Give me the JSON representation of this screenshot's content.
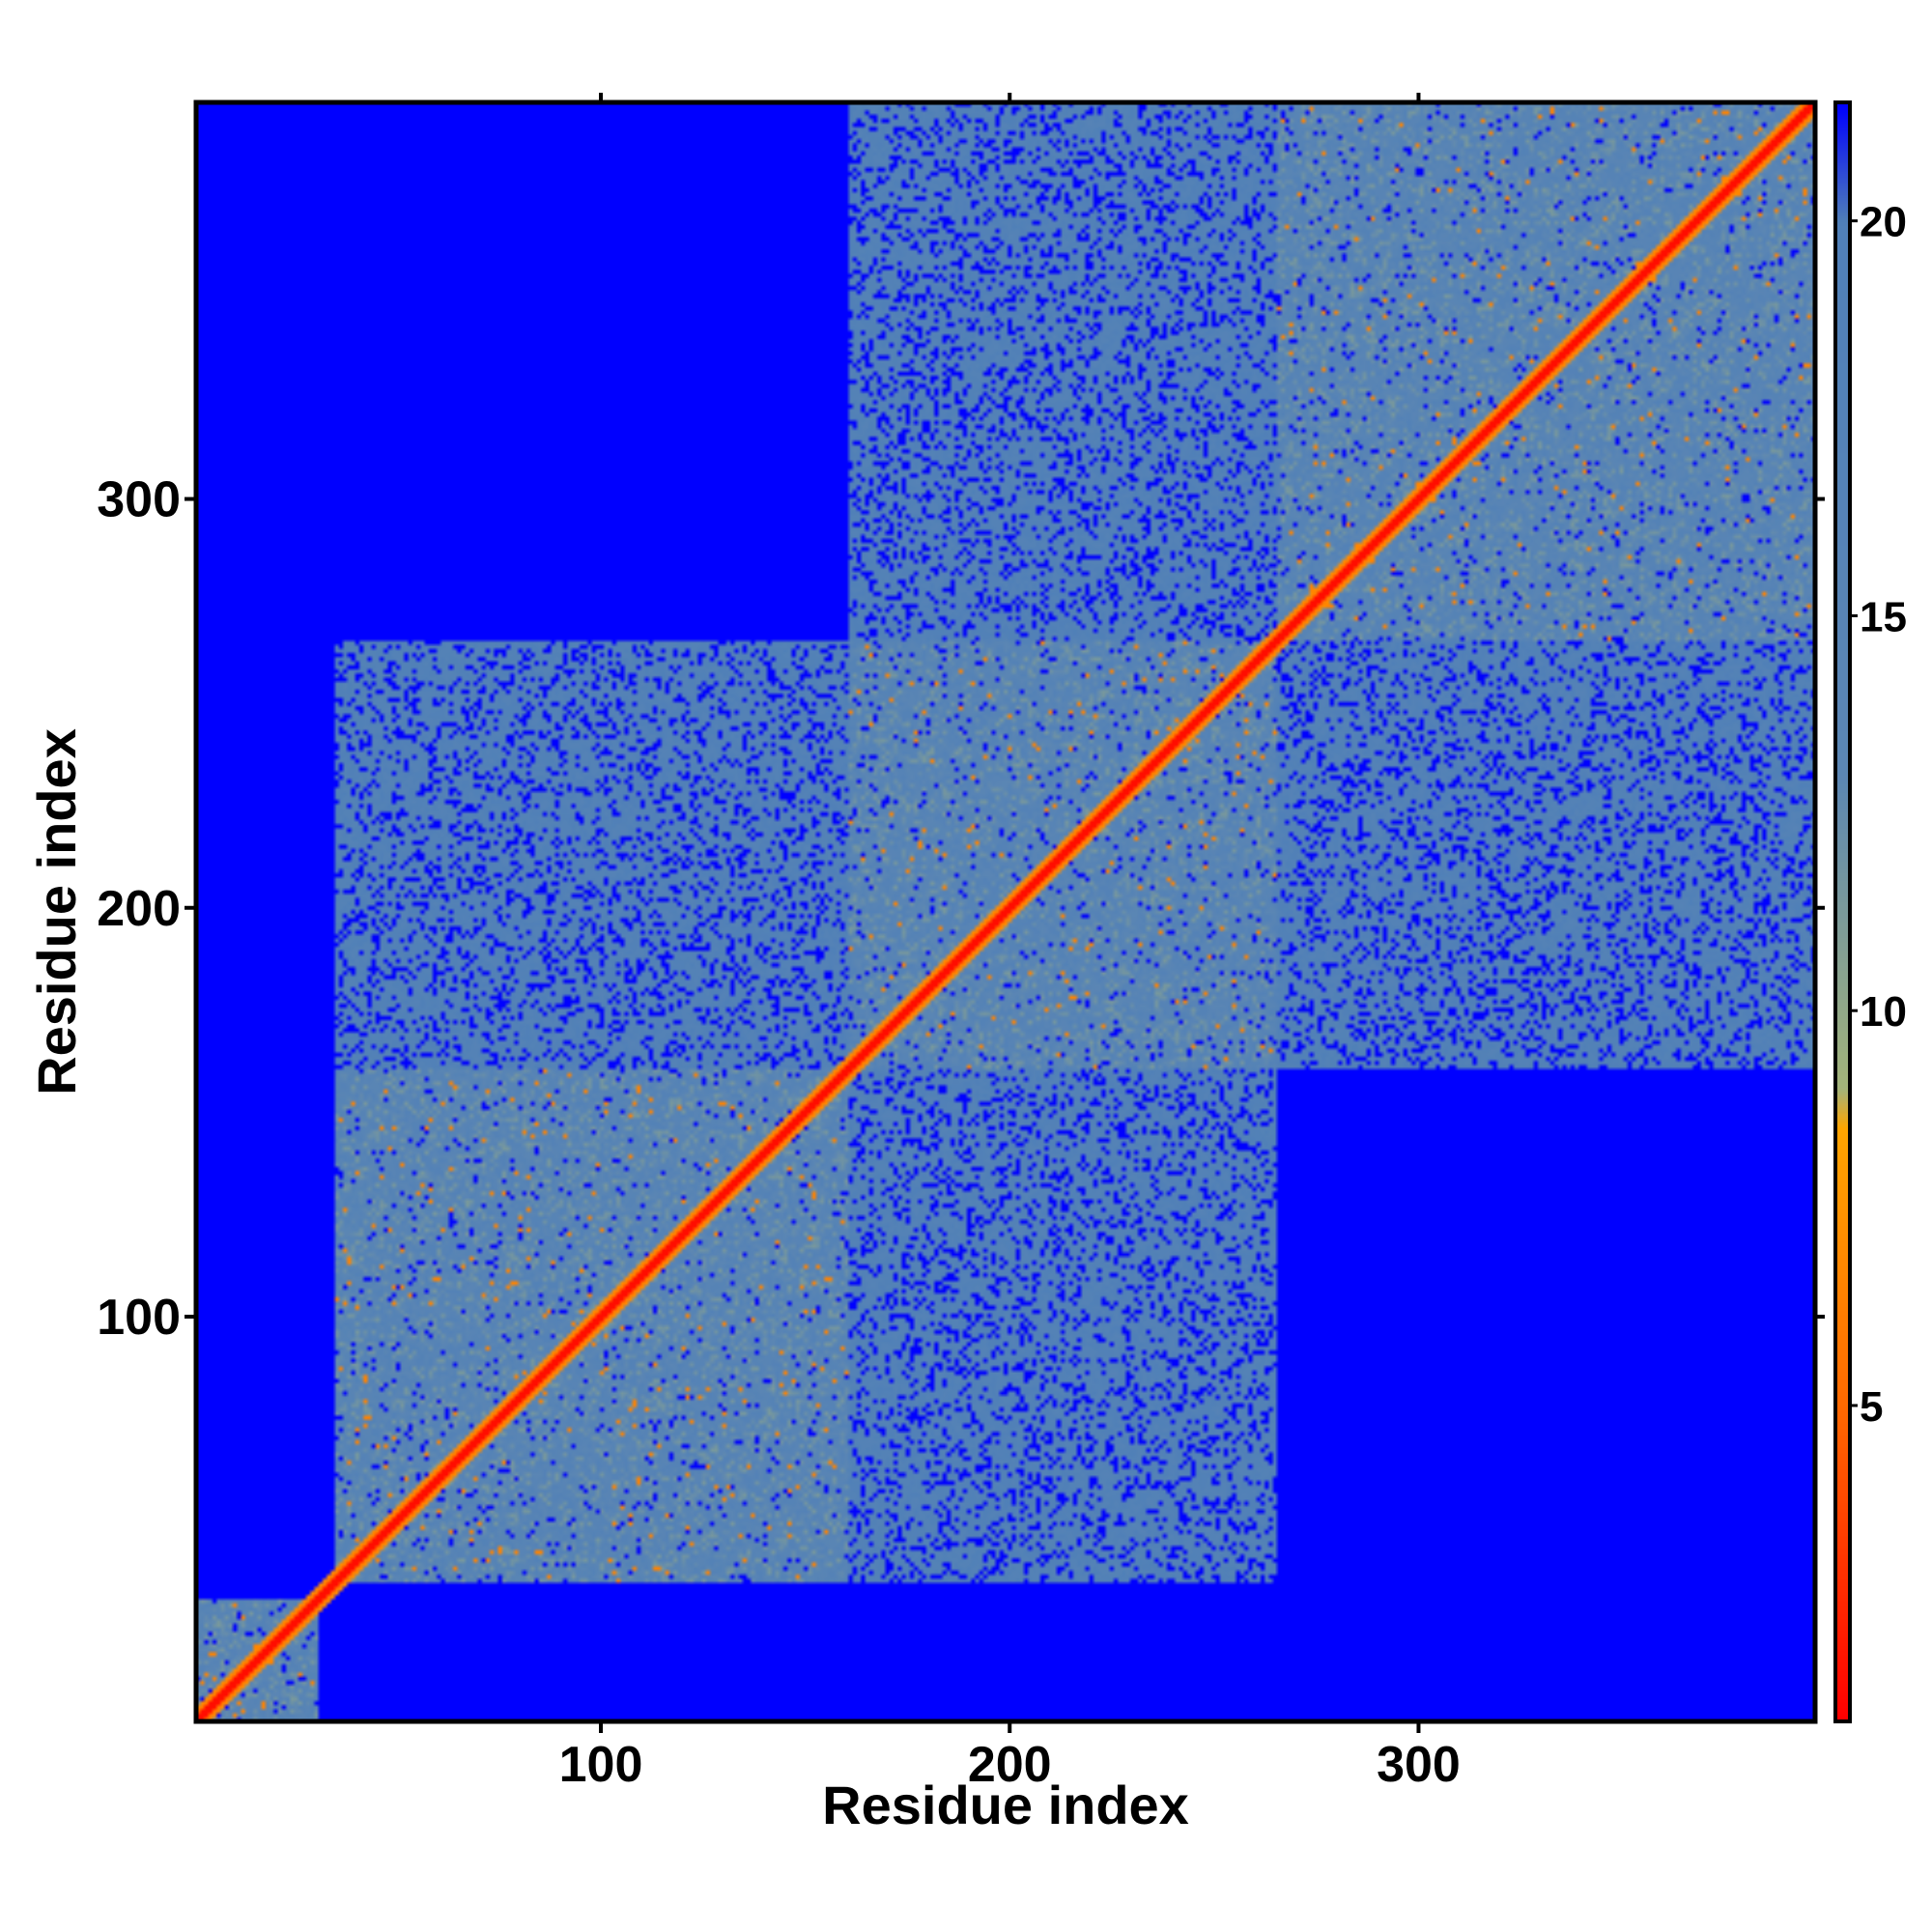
{
  "chart_data": {
    "type": "heatmap",
    "title": "",
    "xlabel": "Residue index",
    "ylabel": "Residue index",
    "xlim": [
      1,
      397
    ],
    "ylim": [
      1,
      397
    ],
    "x_ticks": [
      100,
      200,
      300
    ],
    "y_ticks": [
      100,
      200,
      300
    ],
    "tick_labels_x": [
      "100",
      "200",
      "300"
    ],
    "tick_labels_y": [
      "100",
      "200",
      "300"
    ],
    "colorbar": {
      "label": "",
      "range": [
        1,
        21.5
      ],
      "ticks": [
        5,
        10,
        15,
        20
      ],
      "tick_labels": [
        "5",
        "10",
        "15",
        "20"
      ],
      "stops": [
        {
          "value": 1,
          "color": "#ff0000"
        },
        {
          "value": 5,
          "color": "#ff6a00"
        },
        {
          "value": 8.5,
          "color": "#ffa500"
        },
        {
          "value": 9,
          "color": "#a4b47a"
        },
        {
          "value": 13,
          "color": "#5b86b4"
        },
        {
          "value": 20,
          "color": "#5080b8"
        },
        {
          "value": 21.5,
          "color": "#0000ff"
        }
      ]
    },
    "value_description": "pairwise residue distance map; diagonal near 1, far pairs saturated at 21.5",
    "domains": [
      {
        "start": 1,
        "end": 30
      },
      {
        "start": 35,
        "end": 160
      },
      {
        "start": 160,
        "end": 265
      },
      {
        "start": 265,
        "end": 397
      }
    ],
    "background_color": "#0000ff",
    "grid": false,
    "legend": "colorbar-right"
  }
}
